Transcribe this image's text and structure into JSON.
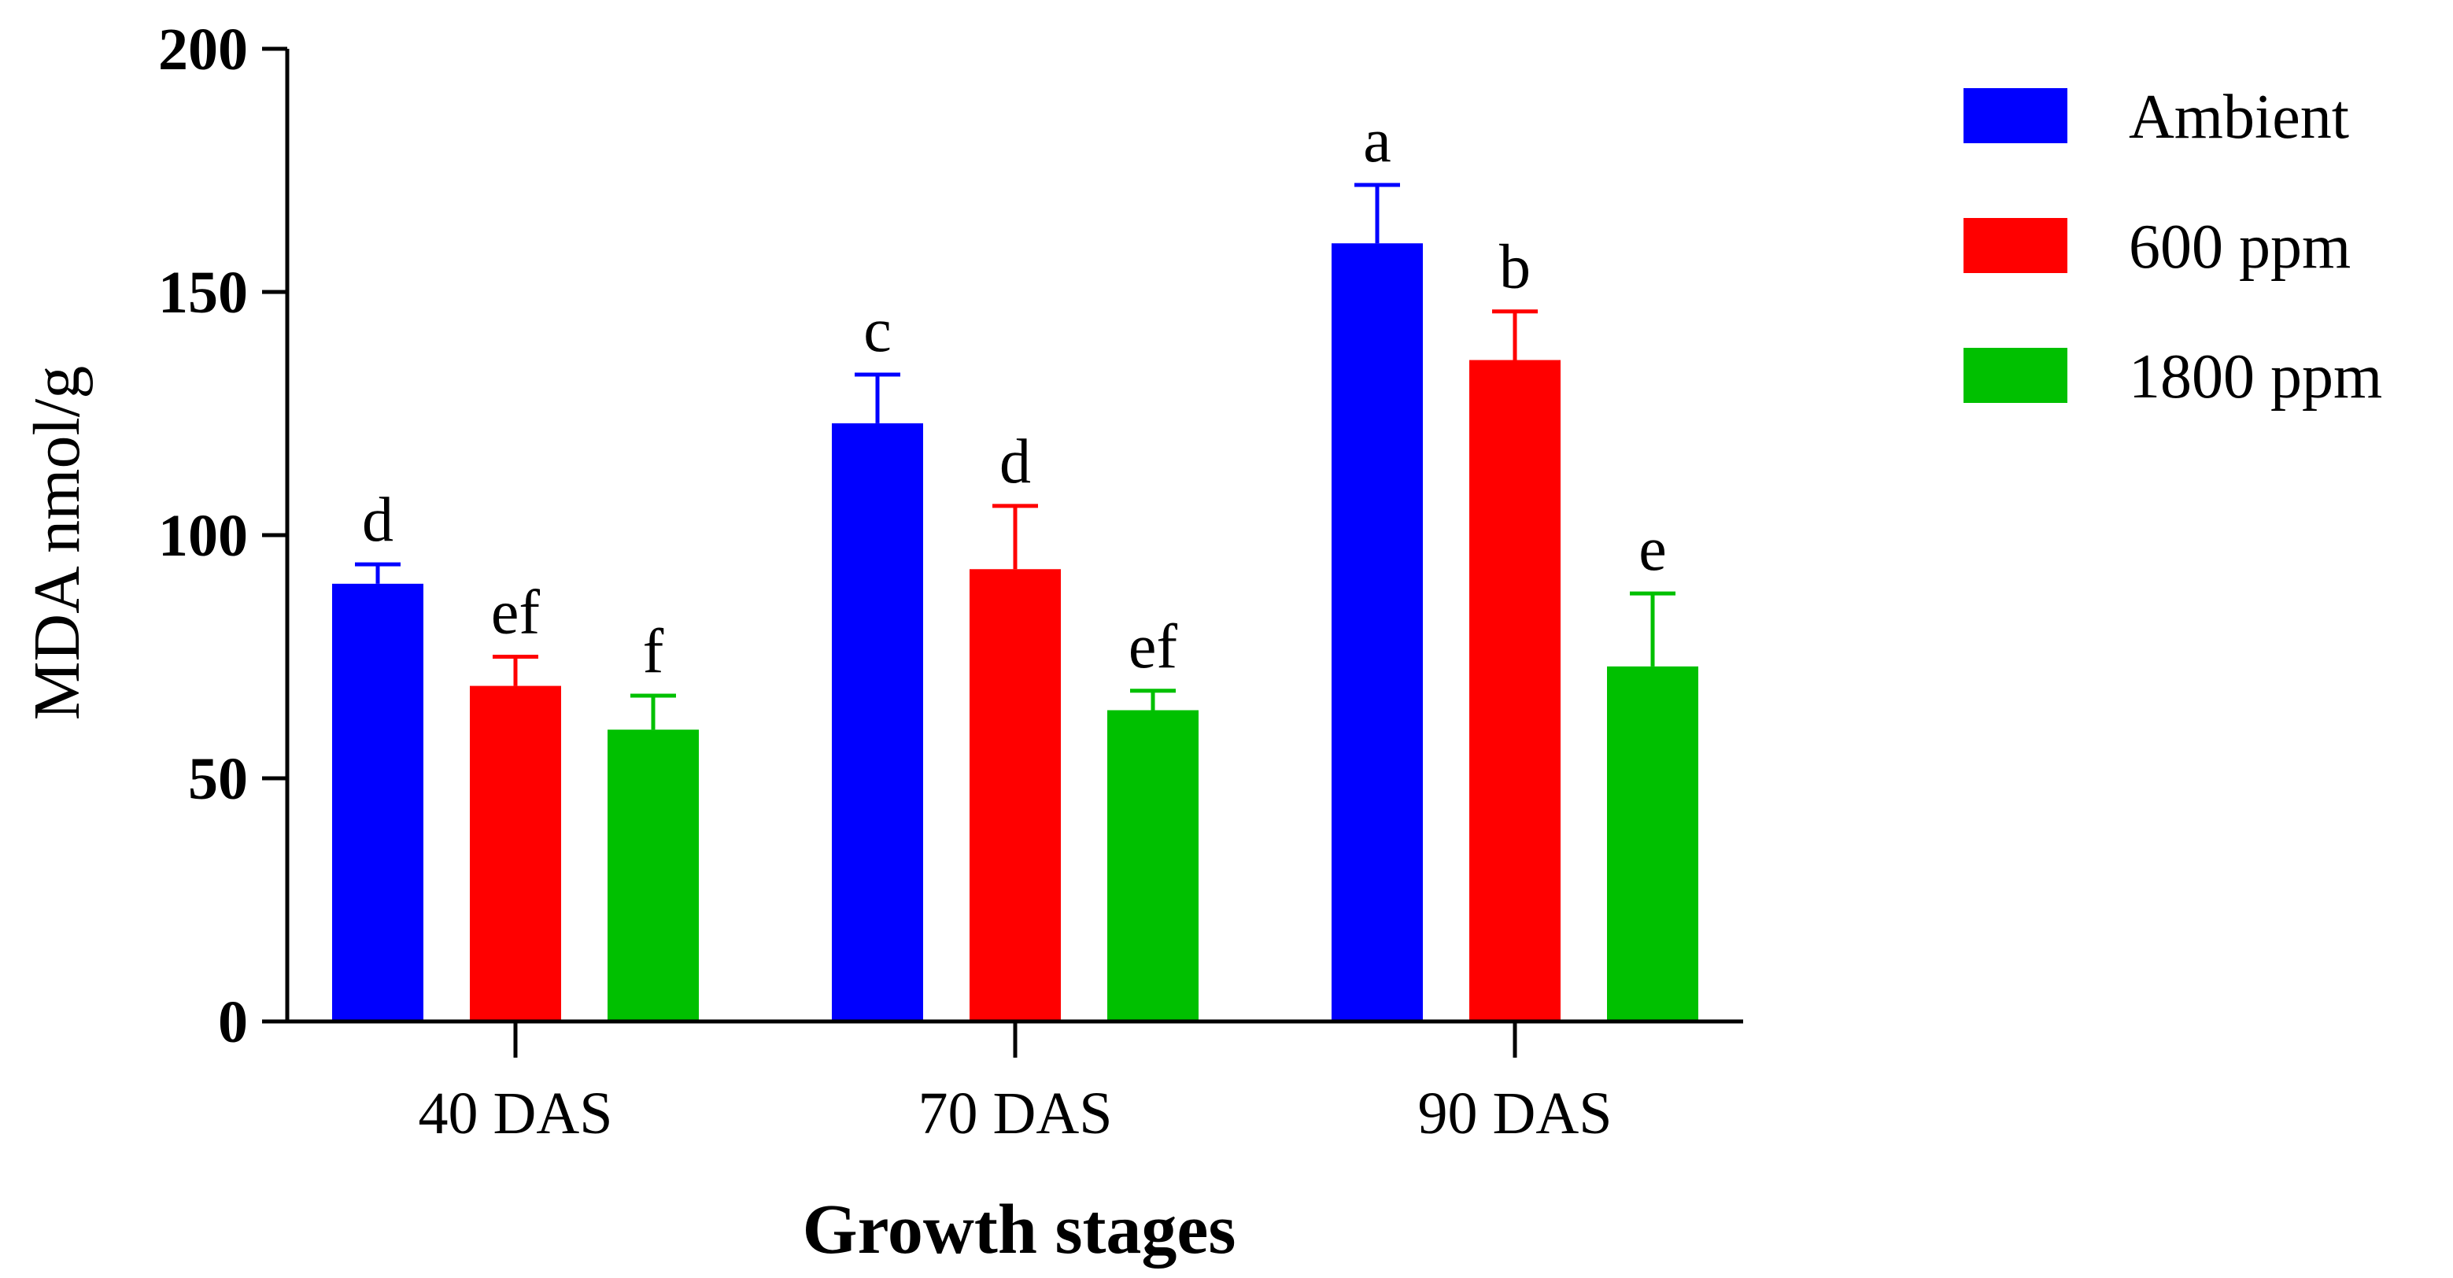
{
  "chart_data": {
    "type": "bar",
    "title": "",
    "xlabel": "Growth stages",
    "ylabel": "MDA nmol/g",
    "ylim": [
      0,
      200
    ],
    "yticks": [
      0,
      50,
      100,
      150,
      200
    ],
    "grid": false,
    "legend_position": "top-right",
    "categories": [
      "40 DAS",
      "70 DAS",
      "90 DAS"
    ],
    "series": [
      {
        "name": "Ambient",
        "color": "#0000ff",
        "values": [
          90,
          123,
          160
        ],
        "errors": [
          4,
          10,
          12
        ],
        "labels": [
          "d",
          "c",
          "a"
        ]
      },
      {
        "name": "600 ppm",
        "color": "#ff0000",
        "values": [
          69,
          93,
          136
        ],
        "errors": [
          6,
          13,
          10
        ],
        "labels": [
          "ef",
          "d",
          "b"
        ]
      },
      {
        "name": "1800 ppm",
        "color": "#00c000",
        "values": [
          60,
          64,
          73
        ],
        "errors": [
          7,
          4,
          15
        ],
        "labels": [
          "f",
          "ef",
          "e"
        ]
      }
    ]
  }
}
